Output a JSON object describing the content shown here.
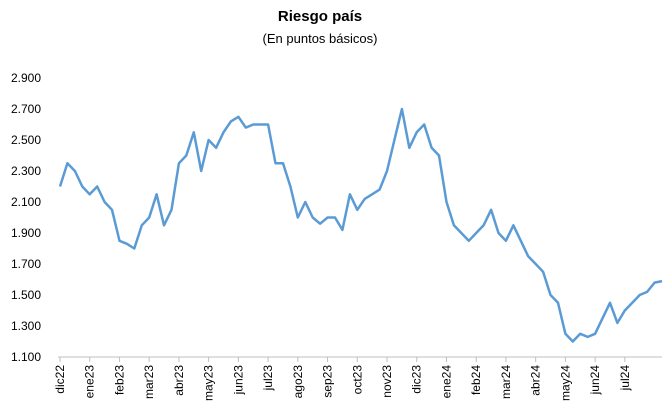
{
  "chart_data": {
    "type": "line",
    "title": "Riesgo país",
    "subtitle": "(En puntos básicos)",
    "categories": [
      "dic22",
      null,
      null,
      null,
      "ene23",
      null,
      null,
      null,
      "feb23",
      null,
      null,
      null,
      "mar23",
      null,
      null,
      null,
      "abr23",
      null,
      null,
      null,
      "may23",
      null,
      null,
      null,
      "jun23",
      null,
      null,
      null,
      "jul23",
      null,
      null,
      null,
      "ago23",
      null,
      null,
      null,
      "sep23",
      null,
      null,
      null,
      "oct23",
      null,
      null,
      null,
      "nov23",
      null,
      null,
      null,
      "dic23",
      null,
      null,
      null,
      "ene24",
      null,
      null,
      null,
      "feb24",
      null,
      null,
      null,
      "mar24",
      null,
      null,
      null,
      "abr24",
      null,
      null,
      null,
      "may24",
      null,
      null,
      null,
      "jun24",
      null,
      null,
      null,
      "jul24",
      null,
      null,
      null,
      null,
      null
    ],
    "values": [
      2200,
      2350,
      2300,
      2200,
      2150,
      2200,
      2100,
      2050,
      1850,
      1830,
      1800,
      1950,
      2000,
      2150,
      1950,
      2050,
      2350,
      2400,
      2550,
      2300,
      2500,
      2450,
      2550,
      2620,
      2650,
      2580,
      2600,
      2600,
      2600,
      2350,
      2350,
      2200,
      2000,
      2100,
      2000,
      1960,
      2000,
      2000,
      1920,
      2150,
      2050,
      2120,
      2150,
      2180,
      2300,
      2500,
      2700,
      2450,
      2550,
      2600,
      2450,
      2400,
      2100,
      1950,
      1900,
      1850,
      1900,
      1950,
      2050,
      1900,
      1850,
      1950,
      1850,
      1750,
      1700,
      1650,
      1500,
      1450,
      1250,
      1200,
      1250,
      1230,
      1250,
      1350,
      1450,
      1320,
      1400,
      1450,
      1500,
      1520,
      1580,
      1590
    ],
    "color": "#5b9bd5",
    "ylim": [
      1100,
      2900
    ],
    "yticks": [
      {
        "value": 1100,
        "label": "1.100"
      },
      {
        "value": 1300,
        "label": "1.300"
      },
      {
        "value": 1500,
        "label": "1.500"
      },
      {
        "value": 1700,
        "label": "1.700"
      },
      {
        "value": 1900,
        "label": "1.900"
      },
      {
        "value": 2100,
        "label": "2.100"
      },
      {
        "value": 2300,
        "label": "2.300"
      },
      {
        "value": 2500,
        "label": "2.500"
      },
      {
        "value": 2700,
        "label": "2.700"
      },
      {
        "value": 2900,
        "label": "2.900"
      }
    ],
    "grid": false
  }
}
